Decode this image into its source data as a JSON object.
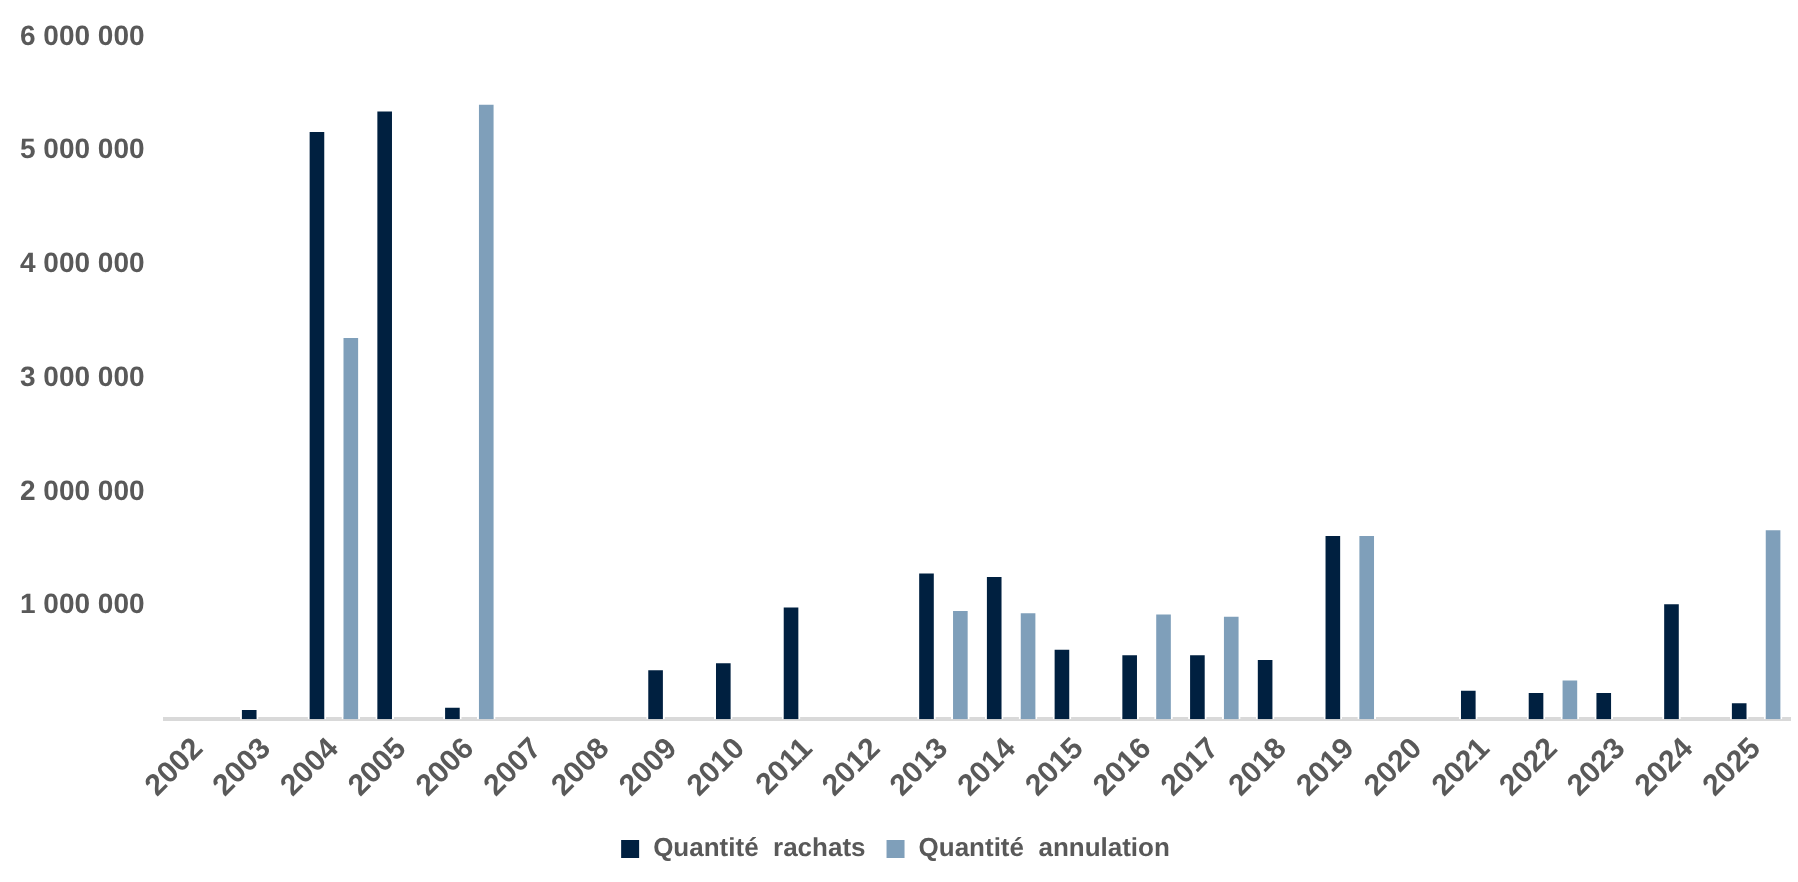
{
  "chart_data": {
    "type": "bar",
    "categories": [
      "2002",
      "2003",
      "2004",
      "2005",
      "2006",
      "2007",
      "2008",
      "2009",
      "2010",
      "2011",
      "2012",
      "2013",
      "2014",
      "2015",
      "2016",
      "2017",
      "2018",
      "2019",
      "2020",
      "2021",
      "2022",
      "2023",
      "2024",
      "2025"
    ],
    "series": [
      {
        "name": "Quantité  rachats",
        "color": "#002040",
        "values": [
          null,
          100000,
          5180000,
          5360000,
          120000,
          null,
          null,
          450000,
          510000,
          1000000,
          null,
          1300000,
          1270000,
          630000,
          580000,
          580000,
          540000,
          1630000,
          null,
          270000,
          250000,
          250000,
          1030000,
          160000
        ]
      },
      {
        "name": "Quantité  annulation",
        "color": "#7f9fba",
        "values": [
          null,
          null,
          3370000,
          null,
          5420000,
          null,
          null,
          null,
          null,
          null,
          null,
          970000,
          950000,
          null,
          940000,
          920000,
          null,
          1630000,
          null,
          null,
          360000,
          null,
          null,
          1680000
        ]
      }
    ],
    "ylim": [
      0,
      6000000
    ],
    "yticks": [
      {
        "value": 1000000,
        "label": "1 000 000"
      },
      {
        "value": 2000000,
        "label": "2 000 000"
      },
      {
        "value": 3000000,
        "label": "3 000 000"
      },
      {
        "value": 4000000,
        "label": "4 000 000"
      },
      {
        "value": 5000000,
        "label": "5 000 000"
      },
      {
        "value": 6000000,
        "label": "6 000 000"
      }
    ],
    "grid": false,
    "legend": "bottom"
  }
}
